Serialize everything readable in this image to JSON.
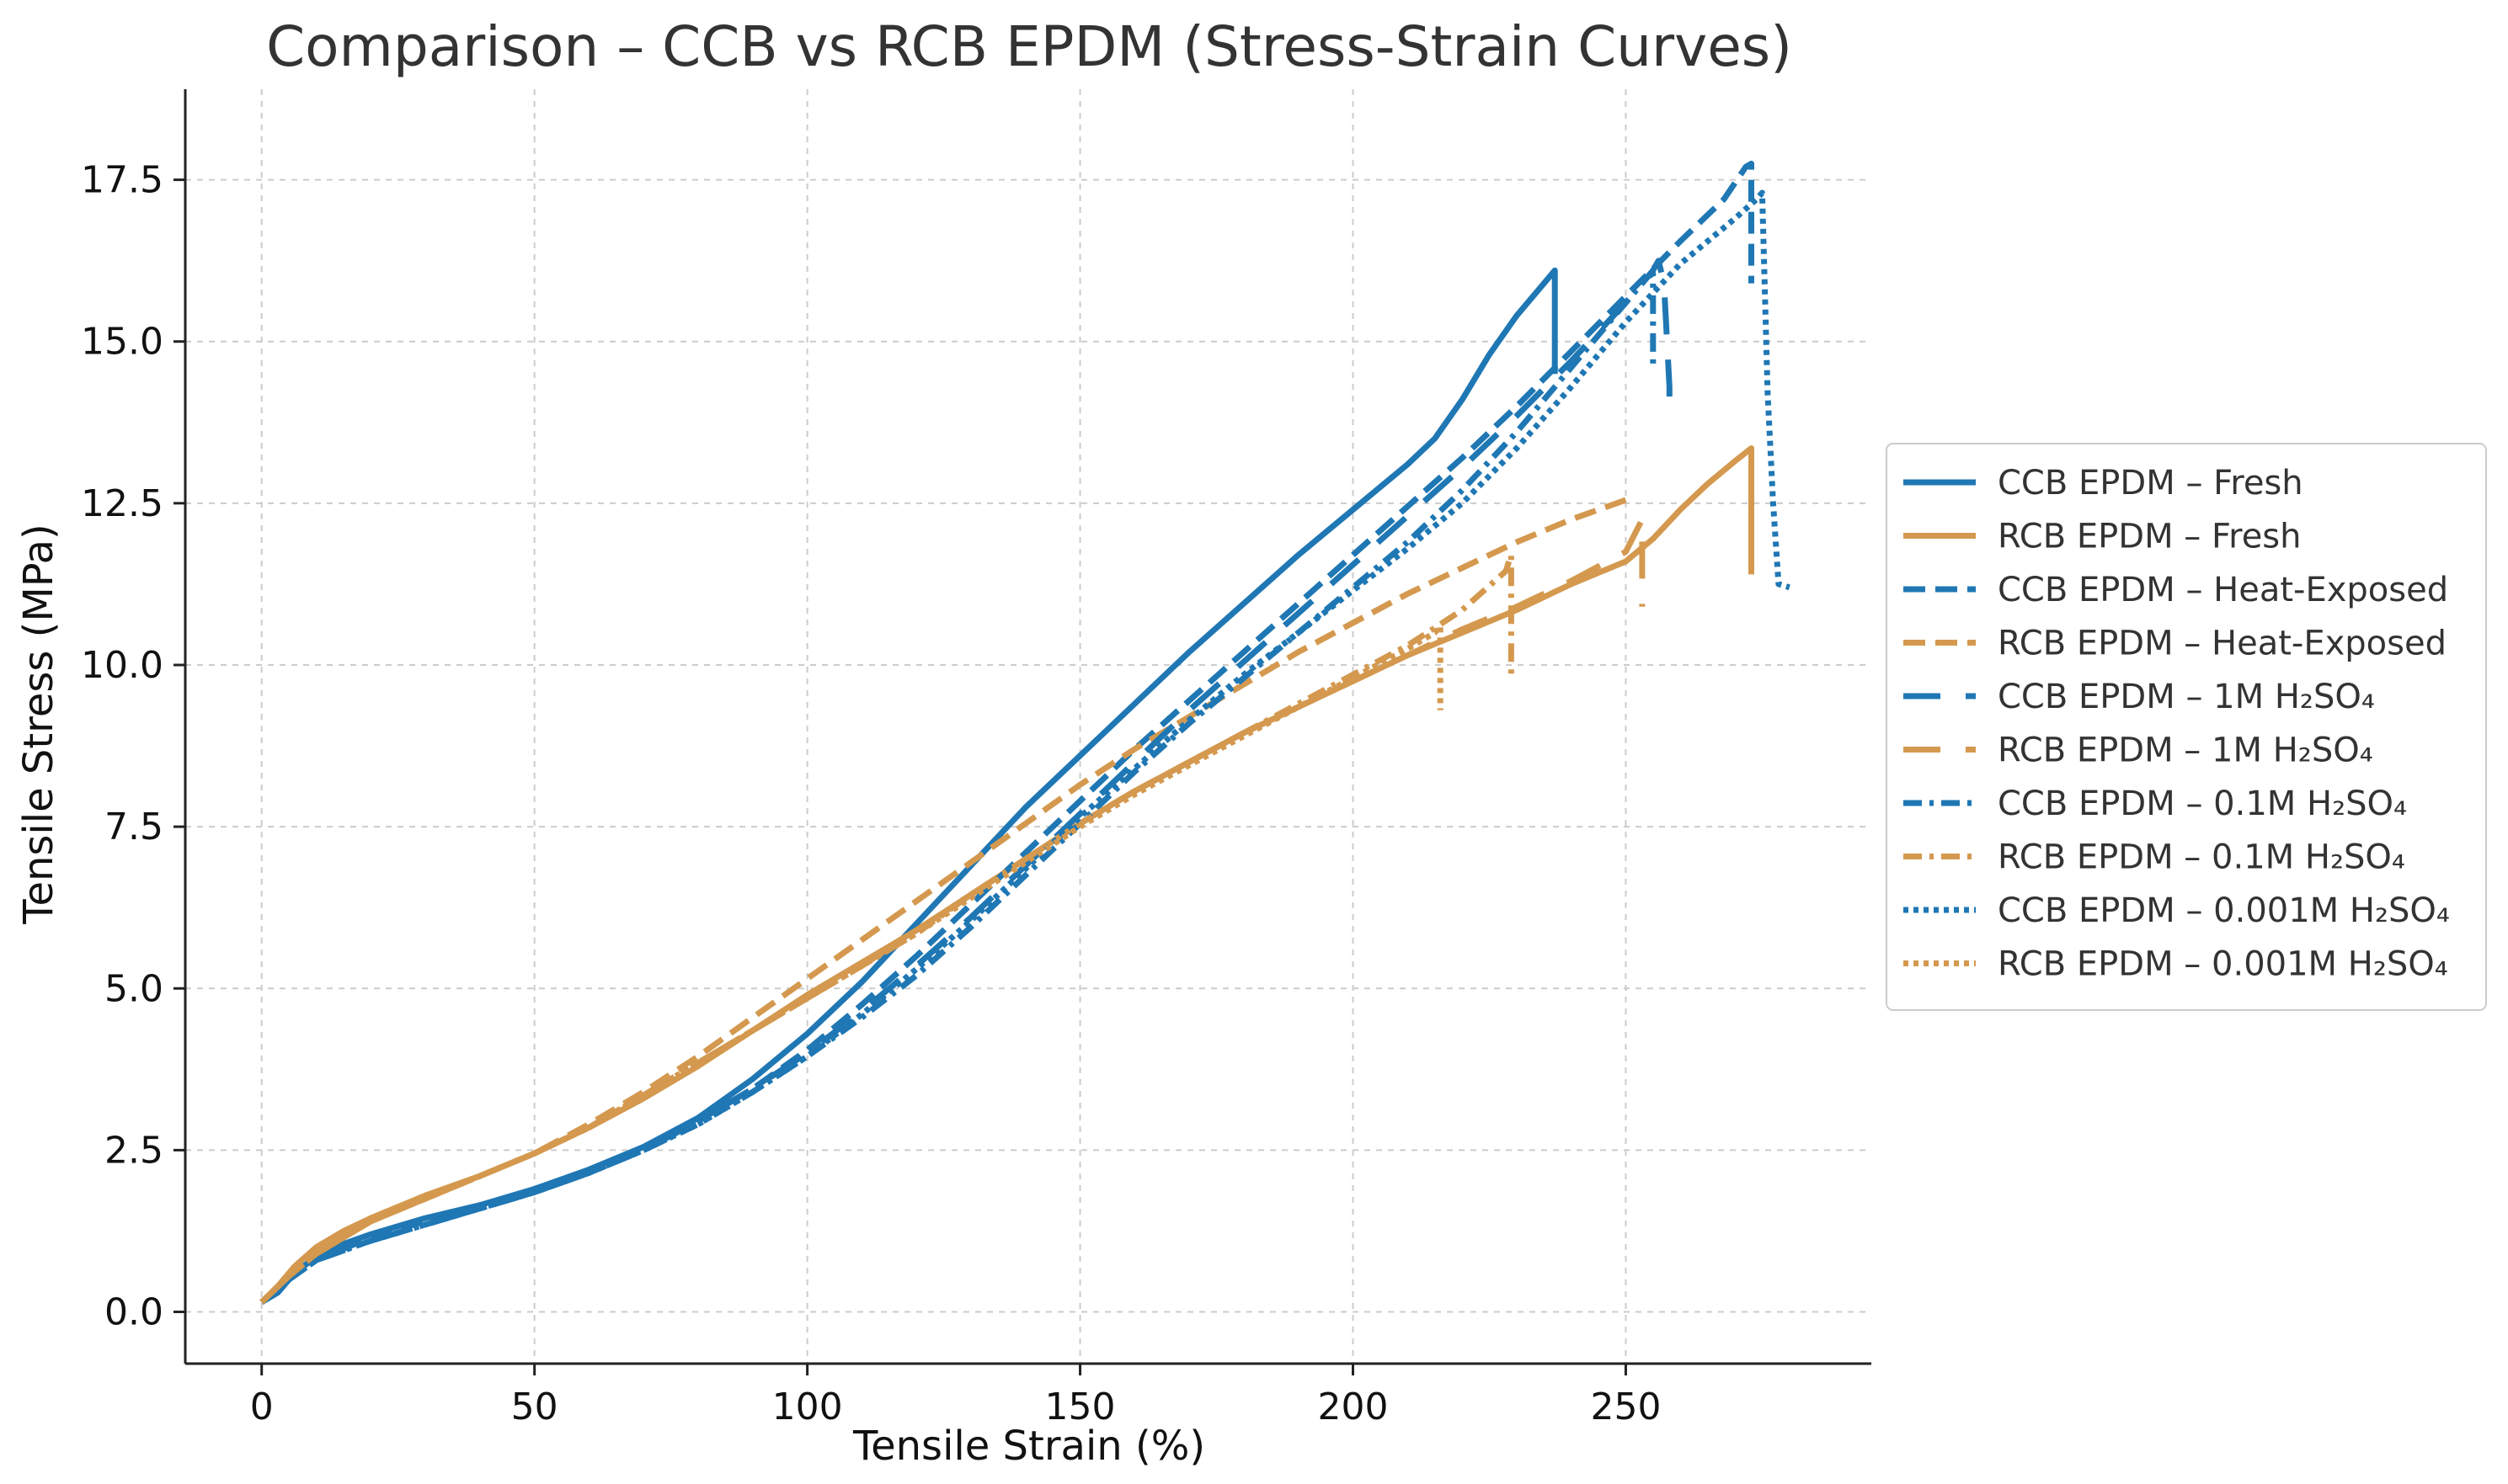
{
  "chart_data": {
    "type": "line",
    "title": "Comparison – CCB vs RCB EPDM (Stress-Strain Curves)",
    "xlabel": "Tensile Strain (%)",
    "ylabel": "Tensile Stress (MPa)",
    "xlim": [
      -14,
      295
    ],
    "ylim": [
      -0.8,
      18.9
    ],
    "xticks": [
      0,
      50,
      100,
      150,
      200,
      250
    ],
    "xtick_labels": [
      "0",
      "50",
      "100",
      "150",
      "200",
      "250"
    ],
    "yticks": [
      0.0,
      2.5,
      5.0,
      7.5,
      10.0,
      12.5,
      15.0,
      17.5
    ],
    "ytick_labels": [
      "0.0",
      "2.5",
      "5.0",
      "7.5",
      "10.0",
      "12.5",
      "15.0",
      "17.5"
    ],
    "grid": true,
    "legend_position": "outside-right",
    "colors": {
      "ccb": "#1f77b4",
      "rcb": "#d4994f",
      "grid": "#cccccc",
      "axis": "#222222",
      "title": "#333333"
    },
    "series": [
      {
        "name": "CCB EPDM – Fresh",
        "group": "ccb",
        "dash": "solid",
        "x": [
          0,
          3,
          6,
          10,
          15,
          20,
          30,
          40,
          50,
          60,
          70,
          80,
          90,
          100,
          110,
          120,
          130,
          140,
          150,
          160,
          170,
          180,
          190,
          200,
          210,
          215,
          220,
          225,
          230,
          235,
          237,
          237
        ],
        "y": [
          0.15,
          0.3,
          0.6,
          0.85,
          1.05,
          1.2,
          1.45,
          1.65,
          1.9,
          2.2,
          2.55,
          3.0,
          3.6,
          4.3,
          5.1,
          6.0,
          6.9,
          7.8,
          8.6,
          9.4,
          10.2,
          10.95,
          11.7,
          12.4,
          13.1,
          13.5,
          14.1,
          14.8,
          15.4,
          15.9,
          16.1,
          14.5
        ]
      },
      {
        "name": "RCB EPDM – Fresh",
        "group": "rcb",
        "dash": "solid",
        "x": [
          0,
          3,
          6,
          10,
          15,
          20,
          30,
          40,
          50,
          60,
          70,
          80,
          90,
          100,
          110,
          120,
          130,
          140,
          150,
          160,
          170,
          180,
          190,
          200,
          210,
          220,
          230,
          240,
          250,
          255,
          260,
          265,
          270,
          273,
          273
        ],
        "y": [
          0.15,
          0.4,
          0.7,
          1.0,
          1.25,
          1.45,
          1.8,
          2.1,
          2.45,
          2.85,
          3.3,
          3.8,
          4.35,
          4.9,
          5.4,
          5.9,
          6.45,
          7.0,
          7.55,
          8.05,
          8.5,
          8.95,
          9.35,
          9.75,
          10.15,
          10.5,
          10.85,
          11.25,
          11.6,
          11.95,
          12.4,
          12.8,
          13.15,
          13.35,
          11.4
        ]
      },
      {
        "name": "CCB EPDM – Heat-Exposed",
        "group": "ccb",
        "dash": "dashed",
        "x": [
          0,
          5,
          10,
          20,
          30,
          40,
          50,
          60,
          70,
          80,
          90,
          100,
          110,
          120,
          130,
          140,
          150,
          160,
          170,
          180,
          190,
          200,
          210,
          220,
          230,
          240,
          250,
          260,
          268,
          272,
          273,
          273
        ],
        "y": [
          0.15,
          0.5,
          0.8,
          1.15,
          1.4,
          1.6,
          1.85,
          2.15,
          2.5,
          2.95,
          3.45,
          4.05,
          4.75,
          5.5,
          6.3,
          7.1,
          7.9,
          8.7,
          9.45,
          10.2,
          10.95,
          11.7,
          12.45,
          13.2,
          14.0,
          14.85,
          15.7,
          16.55,
          17.2,
          17.7,
          17.75,
          15.9
        ]
      },
      {
        "name": "RCB EPDM – Heat-Exposed",
        "group": "rcb",
        "dash": "dashed",
        "x": [
          0,
          5,
          10,
          20,
          30,
          40,
          50,
          60,
          70,
          80,
          90,
          100,
          110,
          120,
          130,
          140,
          150,
          160,
          170,
          180,
          190,
          200,
          210,
          220,
          230,
          240,
          250
        ],
        "y": [
          0.15,
          0.55,
          0.9,
          1.4,
          1.75,
          2.1,
          2.45,
          2.9,
          3.4,
          3.95,
          4.55,
          5.15,
          5.75,
          6.35,
          6.95,
          7.55,
          8.15,
          8.7,
          9.2,
          9.7,
          10.2,
          10.65,
          11.1,
          11.5,
          11.9,
          12.25,
          12.55
        ]
      },
      {
        "name": "CCB EPDM – 1M H₂SO₄",
        "group": "ccb",
        "dash": "longdash",
        "x": [
          0,
          5,
          10,
          20,
          30,
          40,
          50,
          60,
          70,
          80,
          90,
          100,
          110,
          120,
          130,
          140,
          150,
          160,
          170,
          180,
          190,
          200,
          210,
          220,
          230,
          240,
          250,
          255,
          256,
          257,
          258,
          258
        ],
        "y": [
          0.15,
          0.5,
          0.8,
          1.1,
          1.35,
          1.6,
          1.85,
          2.15,
          2.5,
          2.95,
          3.45,
          4.0,
          4.65,
          5.35,
          6.1,
          6.9,
          7.7,
          8.5,
          9.3,
          10.05,
          10.8,
          11.55,
          12.3,
          13.05,
          13.85,
          14.7,
          15.6,
          16.1,
          16.25,
          15.9,
          14.3,
          13.85
        ]
      },
      {
        "name": "RCB EPDM – 1M H₂SO₄",
        "group": "rcb",
        "dash": "longdash",
        "x": [
          0,
          5,
          10,
          20,
          30,
          40,
          50,
          60,
          70,
          80,
          90,
          100,
          110,
          120,
          130,
          140,
          150,
          160,
          170,
          180,
          190,
          200,
          210,
          220,
          230,
          240,
          250,
          253,
          253
        ],
        "y": [
          0.15,
          0.55,
          0.9,
          1.4,
          1.75,
          2.1,
          2.45,
          2.85,
          3.35,
          3.85,
          4.35,
          4.85,
          5.35,
          5.9,
          6.45,
          7.0,
          7.55,
          8.05,
          8.5,
          8.95,
          9.35,
          9.75,
          10.15,
          10.55,
          10.9,
          11.3,
          11.75,
          12.25,
          10.9
        ]
      },
      {
        "name": "CCB EPDM – 0.1M H₂SO₄",
        "group": "ccb",
        "dash": "dashdot",
        "x": [
          0,
          5,
          10,
          20,
          30,
          40,
          50,
          60,
          70,
          80,
          90,
          100,
          110,
          120,
          130,
          140,
          150,
          160,
          170,
          180,
          190,
          200,
          210,
          220,
          230,
          240,
          250,
          254,
          255,
          255
        ],
        "y": [
          0.15,
          0.5,
          0.8,
          1.1,
          1.35,
          1.6,
          1.85,
          2.15,
          2.5,
          2.9,
          3.4,
          3.95,
          4.55,
          5.2,
          5.95,
          6.75,
          7.55,
          8.35,
          9.1,
          9.8,
          10.5,
          11.2,
          11.9,
          12.7,
          13.6,
          14.6,
          15.6,
          16.0,
          16.05,
          14.6
        ]
      },
      {
        "name": "RCB EPDM – 0.1M H₂SO₄",
        "group": "rcb",
        "dash": "dashdot",
        "x": [
          0,
          5,
          10,
          20,
          30,
          40,
          50,
          60,
          70,
          80,
          90,
          100,
          110,
          120,
          130,
          140,
          150,
          160,
          170,
          180,
          190,
          200,
          210,
          220,
          228,
          229,
          229
        ],
        "y": [
          0.15,
          0.55,
          0.9,
          1.4,
          1.75,
          2.1,
          2.45,
          2.85,
          3.35,
          3.85,
          4.35,
          4.85,
          5.35,
          5.85,
          6.45,
          7.0,
          7.55,
          8.05,
          8.5,
          8.95,
          9.4,
          9.85,
          10.3,
          10.85,
          11.45,
          11.7,
          9.8
        ]
      },
      {
        "name": "CCB EPDM – 0.001M H₂SO₄",
        "group": "ccb",
        "dash": "dotted",
        "x": [
          0,
          5,
          10,
          20,
          30,
          40,
          50,
          60,
          70,
          80,
          90,
          100,
          110,
          120,
          130,
          140,
          150,
          160,
          170,
          180,
          190,
          200,
          210,
          220,
          230,
          240,
          250,
          260,
          270,
          274,
          275,
          276,
          277,
          278,
          280
        ],
        "y": [
          0.15,
          0.5,
          0.8,
          1.1,
          1.35,
          1.6,
          1.85,
          2.15,
          2.5,
          2.9,
          3.4,
          3.95,
          4.6,
          5.3,
          6.05,
          6.85,
          7.65,
          8.4,
          9.15,
          9.85,
          10.5,
          11.15,
          11.8,
          12.5,
          13.35,
          14.3,
          15.3,
          16.2,
          16.9,
          17.2,
          17.3,
          14.2,
          12.5,
          11.25,
          11.2
        ]
      },
      {
        "name": "RCB EPDM – 0.001M H₂SO₄",
        "group": "rcb",
        "dash": "dotted",
        "x": [
          0,
          5,
          10,
          20,
          30,
          40,
          50,
          60,
          70,
          80,
          90,
          100,
          110,
          120,
          130,
          140,
          150,
          160,
          170,
          180,
          190,
          200,
          210,
          215,
          216,
          216
        ],
        "y": [
          0.15,
          0.55,
          0.9,
          1.4,
          1.75,
          2.1,
          2.45,
          2.85,
          3.35,
          3.85,
          4.35,
          4.85,
          5.35,
          5.85,
          6.4,
          6.95,
          7.5,
          8.0,
          8.45,
          8.9,
          9.35,
          9.8,
          10.25,
          10.5,
          10.6,
          9.3
        ]
      }
    ]
  }
}
